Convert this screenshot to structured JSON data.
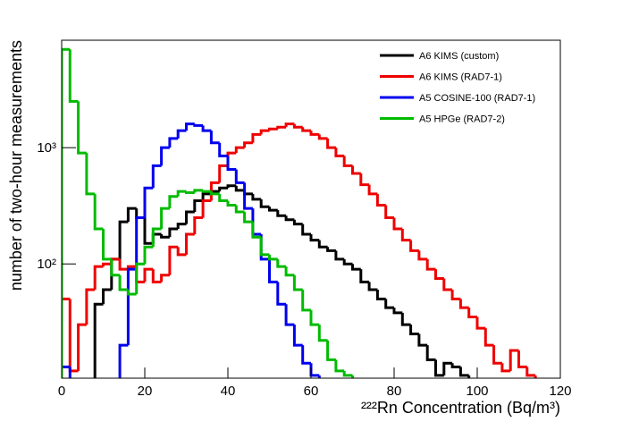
{
  "chart_data": {
    "type": "histogram",
    "xlabel": "²²²Rn Concentration (Bq/m³)",
    "ylabel": "number of two-hour measurements",
    "bins": [
      0,
      2,
      4,
      6,
      8,
      10,
      12,
      14,
      16,
      18,
      20,
      22,
      24,
      26,
      28,
      30,
      32,
      34,
      36,
      38,
      40,
      42,
      44,
      46,
      48,
      50,
      52,
      54,
      56,
      58,
      60,
      62,
      64,
      66,
      68,
      70,
      72,
      74,
      76,
      78,
      80,
      82,
      84,
      86,
      88,
      90,
      92,
      94,
      96,
      98,
      100,
      102,
      104,
      106,
      108,
      110,
      112,
      114,
      116,
      118,
      120
    ],
    "series": [
      {
        "name": "A6 KIMS (custom)",
        "color": "#000000",
        "values": [
          0,
          0,
          0,
          0,
          45,
          60,
          110,
          230,
          300,
          250,
          150,
          180,
          170,
          200,
          220,
          280,
          350,
          400,
          420,
          450,
          470,
          430,
          400,
          360,
          310,
          290,
          260,
          240,
          220,
          180,
          160,
          140,
          130,
          110,
          100,
          90,
          70,
          60,
          50,
          42,
          38,
          30,
          25,
          20,
          15,
          11,
          14,
          13,
          11,
          0,
          0,
          0,
          0,
          0,
          0,
          0,
          0,
          0,
          0,
          0
        ]
      },
      {
        "name": "A6 KIMS (RAD7-1)",
        "color": "#ee0000",
        "values": [
          50,
          12,
          30,
          60,
          95,
          100,
          110,
          90,
          95,
          70,
          90,
          70,
          80,
          140,
          120,
          180,
          250,
          350,
          500,
          700,
          900,
          1000,
          1100,
          1300,
          1400,
          1450,
          1500,
          1600,
          1500,
          1400,
          1300,
          1200,
          1000,
          850,
          700,
          600,
          480,
          400,
          320,
          250,
          200,
          160,
          130,
          110,
          90,
          75,
          60,
          50,
          42,
          35,
          28,
          20,
          14,
          12,
          18,
          13,
          11,
          0,
          0,
          0
        ]
      },
      {
        "name": "A5 COSINE-100 (RAD7-1)",
        "color": "#0000ee",
        "values": [
          13,
          0,
          0,
          0,
          0,
          0,
          0,
          20,
          90,
          250,
          450,
          700,
          1000,
          1200,
          1400,
          1600,
          1550,
          1400,
          1100,
          850,
          650,
          500,
          300,
          180,
          110,
          70,
          45,
          30,
          20,
          14,
          11,
          0,
          0,
          0,
          0,
          0,
          0,
          0,
          0,
          0,
          0,
          0,
          0,
          0,
          0,
          0,
          0,
          0,
          0,
          0,
          0,
          0,
          0,
          0,
          0,
          0,
          0,
          0,
          0,
          0
        ]
      },
      {
        "name": "A5 HPGe (RAD7-2)",
        "color": "#00bb00",
        "values": [
          7000,
          2500,
          900,
          400,
          200,
          110,
          80,
          60,
          55,
          100,
          140,
          200,
          300,
          380,
          420,
          410,
          430,
          420,
          400,
          350,
          320,
          280,
          230,
          170,
          120,
          110,
          95,
          80,
          60,
          40,
          30,
          22,
          15,
          12,
          11,
          0,
          0,
          0,
          0,
          0,
          0,
          0,
          0,
          0,
          0,
          0,
          0,
          0,
          0,
          0,
          0,
          0,
          0,
          0,
          0,
          0,
          0,
          0,
          0,
          0
        ]
      }
    ],
    "xlim": [
      0,
      120
    ],
    "xticks": [
      0,
      20,
      40,
      60,
      80,
      100,
      120
    ],
    "ylim": [
      10.4,
      8400
    ],
    "log_y": true,
    "yticks": [
      {
        "value": 100,
        "label": "10²"
      },
      {
        "value": 1000,
        "label": "10³"
      }
    ],
    "legend": "upper right"
  }
}
